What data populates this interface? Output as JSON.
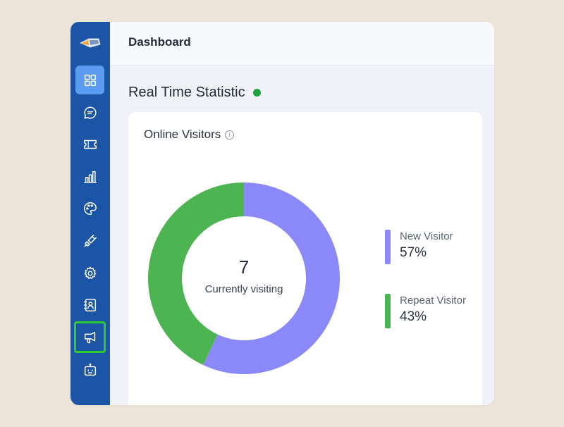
{
  "sidebar": {
    "items": [
      {
        "name": "dashboard",
        "icon": "dashboard-grid-icon"
      },
      {
        "name": "chats",
        "icon": "chat-bubble-icon"
      },
      {
        "name": "tickets",
        "icon": "ticket-icon"
      },
      {
        "name": "reports",
        "icon": "bar-chart-icon"
      },
      {
        "name": "appearance",
        "icon": "palette-icon"
      },
      {
        "name": "integrations",
        "icon": "plug-icon"
      },
      {
        "name": "settings",
        "icon": "gear-icon"
      },
      {
        "name": "contacts",
        "icon": "contacts-book-icon"
      },
      {
        "name": "campaigns",
        "icon": "megaphone-icon"
      },
      {
        "name": "chatbot",
        "icon": "robot-icon"
      }
    ],
    "active": "dashboard",
    "highlighted": "campaigns"
  },
  "header": {
    "title": "Dashboard"
  },
  "section": {
    "title": "Real Time Statistic",
    "live_color": "#1fa33f"
  },
  "card": {
    "title": "Online Visitors",
    "center_value": "7",
    "center_label": "Currently visiting"
  },
  "legend": [
    {
      "label": "New Visitor",
      "value_text": "57%",
      "color": "#8b88fa"
    },
    {
      "label": "Repeat Visitor",
      "value_text": "43%",
      "color": "#4cb551"
    }
  ],
  "chart_data": {
    "type": "pie",
    "categories": [
      "New Visitor",
      "Repeat Visitor"
    ],
    "values": [
      57,
      43
    ],
    "colors": [
      "#8b88fa",
      "#4cb551"
    ],
    "donut": true,
    "legend_position": "right"
  }
}
